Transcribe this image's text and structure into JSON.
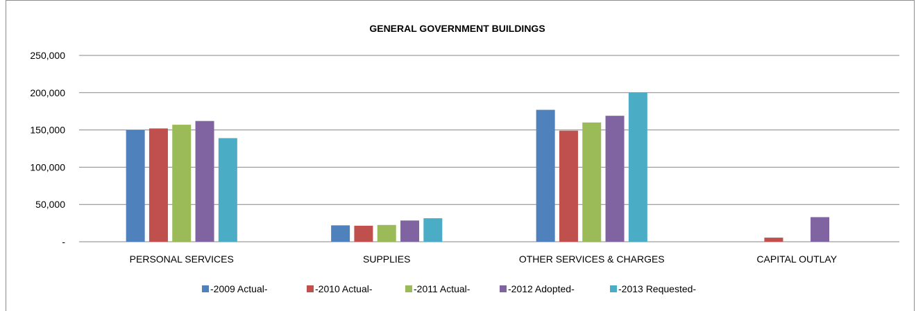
{
  "chart_data": {
    "type": "bar",
    "title": "GENERAL GOVERNMENT BUILDINGS",
    "categories": [
      "PERSONAL SERVICES",
      "SUPPLIES",
      "OTHER SERVICES & CHARGES",
      "CAPITAL OUTLAY"
    ],
    "ylim": [
      0,
      250000
    ],
    "yticks": [
      0,
      50000,
      100000,
      150000,
      200000,
      250000
    ],
    "ytick_labels": [
      "-",
      "50,000",
      "100,000",
      "150,000",
      "200,000",
      "250,000"
    ],
    "grid": true,
    "legend_position": "bottom",
    "series": [
      {
        "name": "-2009 Actual-",
        "color": "#4f81bd",
        "values": [
          150000,
          22000,
          177000,
          0
        ]
      },
      {
        "name": "-2010 Actual-",
        "color": "#c0504d",
        "values": [
          152000,
          21500,
          149000,
          5500
        ]
      },
      {
        "name": "-2011 Actual-",
        "color": "#9bbb59",
        "values": [
          157000,
          22500,
          160000,
          0
        ]
      },
      {
        "name": "-2012 Adopted-",
        "color": "#8064a2",
        "values": [
          162000,
          28500,
          169000,
          33000
        ]
      },
      {
        "name": "-2013 Requested-",
        "color": "#4bacc6",
        "values": [
          139000,
          31500,
          200000,
          0
        ]
      }
    ]
  }
}
